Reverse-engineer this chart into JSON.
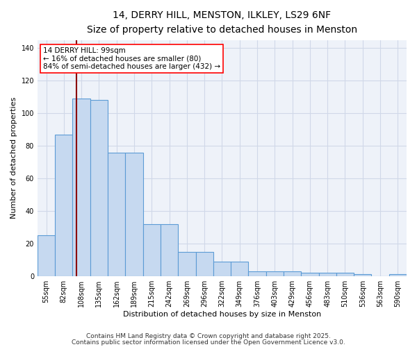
{
  "title1": "14, DERRY HILL, MENSTON, ILKLEY, LS29 6NF",
  "title2": "Size of property relative to detached houses in Menston",
  "xlabel": "Distribution of detached houses by size in Menston",
  "ylabel": "Number of detached properties",
  "categories": [
    "55sqm",
    "82sqm",
    "108sqm",
    "135sqm",
    "162sqm",
    "189sqm",
    "215sqm",
    "242sqm",
    "269sqm",
    "296sqm",
    "322sqm",
    "349sqm",
    "376sqm",
    "403sqm",
    "429sqm",
    "456sqm",
    "483sqm",
    "510sqm",
    "536sqm",
    "563sqm",
    "590sqm"
  ],
  "bar_heights": [
    25,
    87,
    109,
    108,
    76,
    76,
    32,
    32,
    15,
    15,
    9,
    9,
    3,
    3,
    3,
    2,
    2,
    2,
    1,
    0,
    1
  ],
  "bar_color": "#c6d9f0",
  "bar_edge_color": "#5b9bd5",
  "vline_x": 1.72,
  "vline_color": "#8b0000",
  "ylim": [
    0,
    145
  ],
  "yticks": [
    0,
    20,
    40,
    60,
    80,
    100,
    120,
    140
  ],
  "annotation_title": "14 DERRY HILL: 99sqm",
  "annotation_line1": "← 16% of detached houses are smaller (80)",
  "annotation_line2": "84% of semi-detached houses are larger (432) →",
  "footer1": "Contains HM Land Registry data © Crown copyright and database right 2025.",
  "footer2": "Contains public sector information licensed under the Open Government Licence v3.0.",
  "bg_color": "#eef2f9",
  "grid_color": "#d0d8e8",
  "title_fontsize": 10,
  "subtitle_fontsize": 9,
  "annot_fontsize": 7.5,
  "footer_fontsize": 6.5,
  "axis_label_fontsize": 8,
  "tick_fontsize": 7
}
